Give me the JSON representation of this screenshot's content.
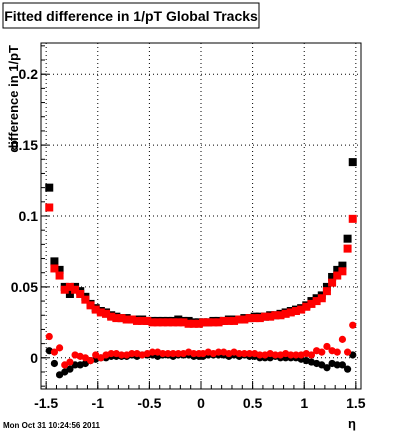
{
  "chart_data": {
    "type": "scatter",
    "title": "Fitted difference in 1/pT  Global Tracks",
    "xlabel": "η",
    "ylabel": "difference in 1/pT",
    "xlim": [
      -1.55,
      1.55
    ],
    "ylim": [
      -0.022,
      0.222
    ],
    "x_ticks": [
      -1.5,
      -1,
      -0.5,
      0,
      0.5,
      1,
      1.5
    ],
    "x_tick_labels": [
      "-1.5",
      "-1",
      "-0.5",
      "0",
      "0.5",
      "1",
      "1.5"
    ],
    "y_ticks": [
      0,
      0.05,
      0.1,
      0.15,
      0.2
    ],
    "y_tick_labels": [
      "0",
      "0.05",
      "0.1",
      "0.15",
      "0.2"
    ],
    "grid": true,
    "timestamp": "Mon Oct 31 10:24:56 2011",
    "series": [
      {
        "color": "#000000",
        "marker": "square",
        "x": [
          -1.47,
          -1.42,
          -1.37,
          -1.32,
          -1.27,
          -1.22,
          -1.17,
          -1.12,
          -1.07,
          -1.02,
          -0.97,
          -0.92,
          -0.87,
          -0.82,
          -0.77,
          -0.72,
          -0.67,
          -0.62,
          -0.57,
          -0.52,
          -0.47,
          -0.42,
          -0.37,
          -0.32,
          -0.27,
          -0.22,
          -0.17,
          -0.12,
          -0.07,
          -0.02,
          0.02,
          0.07,
          0.12,
          0.17,
          0.22,
          0.27,
          0.32,
          0.37,
          0.42,
          0.47,
          0.52,
          0.57,
          0.62,
          0.67,
          0.72,
          0.77,
          0.82,
          0.87,
          0.92,
          0.97,
          1.02,
          1.07,
          1.12,
          1.17,
          1.22,
          1.27,
          1.32,
          1.37,
          1.42,
          1.47
        ],
        "y": [
          0.12,
          0.068,
          0.062,
          0.05,
          0.045,
          0.05,
          0.047,
          0.043,
          0.038,
          0.035,
          0.033,
          0.032,
          0.03,
          0.029,
          0.028,
          0.028,
          0.027,
          0.027,
          0.027,
          0.026,
          0.026,
          0.026,
          0.026,
          0.026,
          0.026,
          0.027,
          0.026,
          0.026,
          0.025,
          0.025,
          0.025,
          0.025,
          0.026,
          0.026,
          0.026,
          0.027,
          0.027,
          0.027,
          0.028,
          0.028,
          0.029,
          0.029,
          0.029,
          0.03,
          0.03,
          0.031,
          0.032,
          0.033,
          0.034,
          0.035,
          0.037,
          0.04,
          0.042,
          0.044,
          0.05,
          0.057,
          0.062,
          0.065,
          0.084,
          0.138
        ]
      },
      {
        "color": "#ff0000",
        "marker": "square",
        "x": [
          -1.47,
          -1.42,
          -1.37,
          -1.32,
          -1.27,
          -1.22,
          -1.17,
          -1.12,
          -1.07,
          -1.02,
          -0.97,
          -0.92,
          -0.87,
          -0.82,
          -0.77,
          -0.72,
          -0.67,
          -0.62,
          -0.57,
          -0.52,
          -0.47,
          -0.42,
          -0.37,
          -0.32,
          -0.27,
          -0.22,
          -0.17,
          -0.12,
          -0.07,
          -0.02,
          0.02,
          0.07,
          0.12,
          0.17,
          0.22,
          0.27,
          0.32,
          0.37,
          0.42,
          0.47,
          0.52,
          0.57,
          0.62,
          0.67,
          0.72,
          0.77,
          0.82,
          0.87,
          0.92,
          0.97,
          1.02,
          1.07,
          1.12,
          1.17,
          1.22,
          1.27,
          1.32,
          1.37,
          1.42,
          1.47
        ],
        "y": [
          0.106,
          0.063,
          0.058,
          0.048,
          0.05,
          0.048,
          0.045,
          0.041,
          0.037,
          0.034,
          0.032,
          0.031,
          0.029,
          0.028,
          0.028,
          0.027,
          0.027,
          0.026,
          0.026,
          0.026,
          0.025,
          0.025,
          0.025,
          0.025,
          0.025,
          0.025,
          0.025,
          0.024,
          0.024,
          0.024,
          0.025,
          0.025,
          0.025,
          0.025,
          0.026,
          0.026,
          0.026,
          0.027,
          0.027,
          0.028,
          0.028,
          0.028,
          0.029,
          0.029,
          0.03,
          0.03,
          0.031,
          0.032,
          0.033,
          0.034,
          0.036,
          0.038,
          0.04,
          0.042,
          0.047,
          0.053,
          0.058,
          0.061,
          0.077,
          0.098
        ]
      },
      {
        "color": "#000000",
        "marker": "circle",
        "x": [
          -1.47,
          -1.42,
          -1.37,
          -1.32,
          -1.27,
          -1.22,
          -1.17,
          -1.12,
          -1.07,
          -1.02,
          -0.97,
          -0.92,
          -0.87,
          -0.82,
          -0.77,
          -0.72,
          -0.67,
          -0.62,
          -0.57,
          -0.52,
          -0.47,
          -0.42,
          -0.37,
          -0.32,
          -0.27,
          -0.22,
          -0.17,
          -0.12,
          -0.07,
          -0.02,
          0.02,
          0.07,
          0.12,
          0.17,
          0.22,
          0.27,
          0.32,
          0.37,
          0.42,
          0.47,
          0.52,
          0.57,
          0.62,
          0.67,
          0.72,
          0.77,
          0.82,
          0.87,
          0.92,
          0.97,
          1.02,
          1.07,
          1.12,
          1.17,
          1.22,
          1.27,
          1.32,
          1.37,
          1.42,
          1.47
        ],
        "y": [
          0.005,
          -0.004,
          -0.012,
          -0.01,
          -0.008,
          -0.005,
          -0.005,
          -0.004,
          -0.002,
          -0.001,
          0.0,
          0.0,
          0.001,
          0.001,
          0.001,
          0.001,
          0.002,
          0.001,
          0.002,
          0.002,
          0.002,
          0.001,
          0.002,
          0.002,
          0.001,
          0.002,
          0.002,
          0.002,
          0.001,
          0.001,
          0.001,
          0.002,
          0.002,
          0.002,
          0.002,
          0.001,
          0.002,
          0.001,
          0.002,
          0.001,
          0.001,
          0.0,
          0.0,
          0.0,
          0.001,
          0.0,
          0.0,
          0.0,
          0.0,
          -0.001,
          -0.002,
          -0.003,
          -0.004,
          -0.005,
          -0.007,
          -0.004,
          -0.005,
          -0.005,
          -0.008,
          0.002
        ]
      },
      {
        "color": "#ff0000",
        "marker": "circle",
        "x": [
          -1.47,
          -1.42,
          -1.37,
          -1.32,
          -1.27,
          -1.22,
          -1.17,
          -1.12,
          -1.07,
          -1.02,
          -0.97,
          -0.92,
          -0.87,
          -0.82,
          -0.77,
          -0.72,
          -0.67,
          -0.62,
          -0.57,
          -0.52,
          -0.47,
          -0.42,
          -0.37,
          -0.32,
          -0.27,
          -0.22,
          -0.17,
          -0.12,
          -0.07,
          -0.02,
          0.02,
          0.07,
          0.12,
          0.17,
          0.22,
          0.27,
          0.32,
          0.37,
          0.42,
          0.47,
          0.52,
          0.57,
          0.62,
          0.67,
          0.72,
          0.77,
          0.82,
          0.87,
          0.92,
          0.97,
          1.02,
          1.07,
          1.12,
          1.17,
          1.22,
          1.27,
          1.32,
          1.37,
          1.42,
          1.47
        ],
        "y": [
          0.015,
          0.004,
          0.007,
          -0.005,
          -0.003,
          0.002,
          0.001,
          0.0,
          -0.002,
          0.002,
          0.0,
          0.002,
          0.003,
          0.003,
          0.002,
          0.002,
          0.003,
          0.003,
          0.002,
          0.003,
          0.004,
          0.004,
          0.003,
          0.003,
          0.003,
          0.003,
          0.003,
          0.004,
          0.003,
          0.003,
          0.003,
          0.004,
          0.003,
          0.004,
          0.004,
          0.003,
          0.004,
          0.003,
          0.003,
          0.003,
          0.003,
          0.002,
          0.002,
          0.003,
          0.002,
          0.002,
          0.003,
          0.002,
          0.002,
          0.002,
          0.003,
          0.002,
          0.005,
          0.004,
          0.008,
          0.005,
          0.004,
          0.013,
          0.004,
          0.023
        ]
      }
    ]
  }
}
